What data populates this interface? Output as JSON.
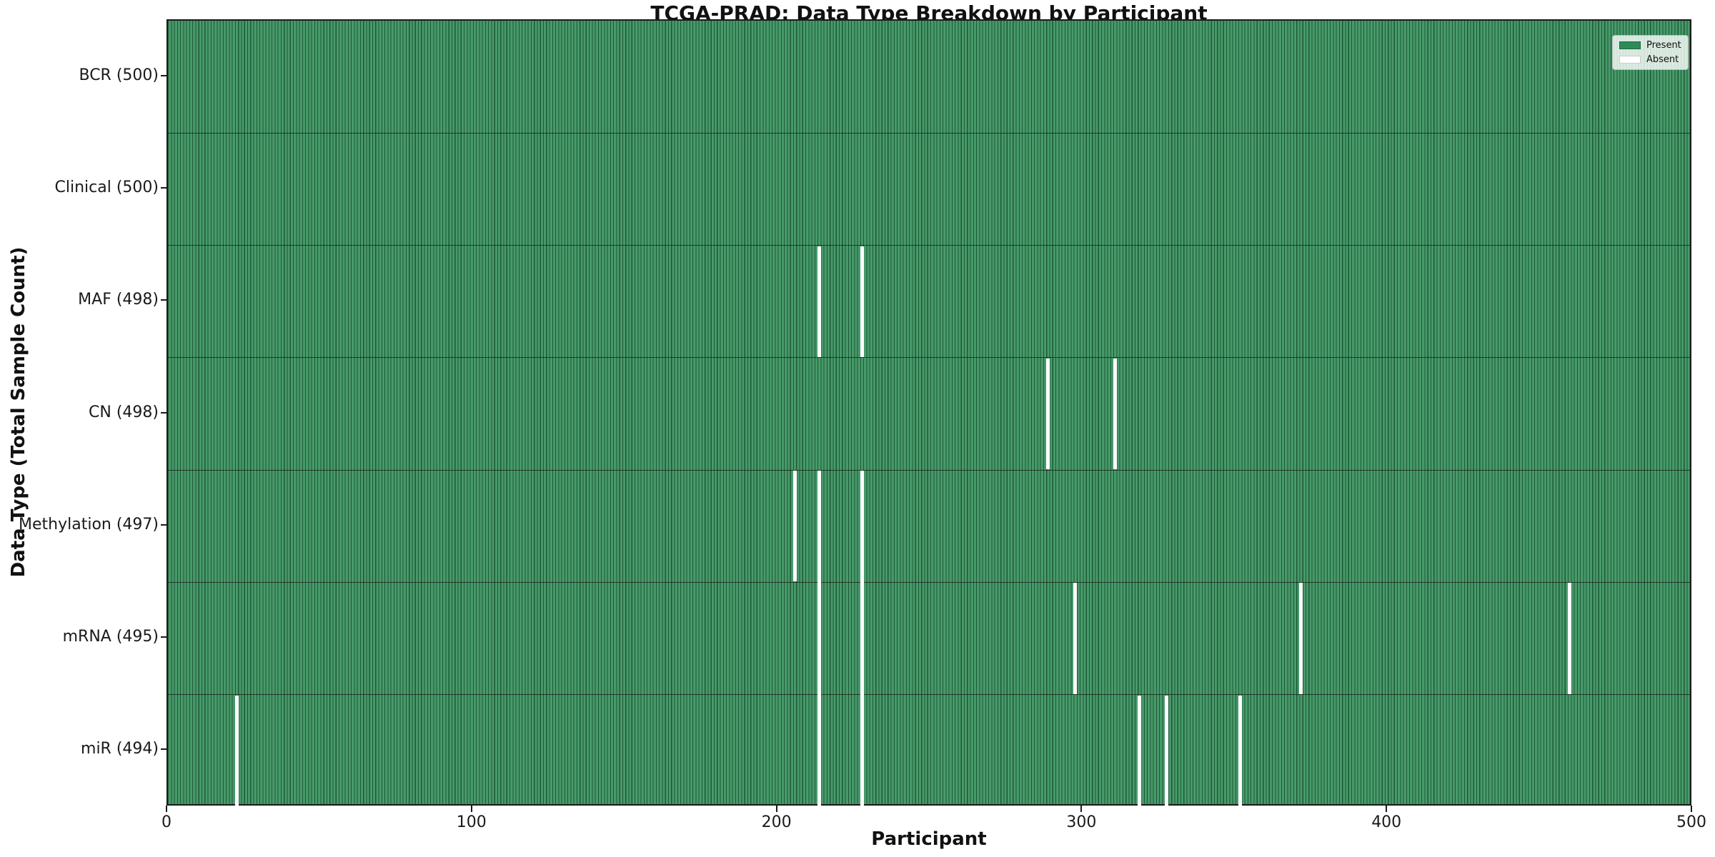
{
  "chart_data": {
    "type": "heatmap",
    "title": "TCGA-PRAD: Data Type Breakdown by Participant",
    "xlabel": "Participant",
    "ylabel": "Data Type (Total Sample Count)",
    "n_participants": 500,
    "x_range": [
      0,
      500
    ],
    "x_ticks": [
      0,
      100,
      200,
      300,
      400,
      500
    ],
    "legend_position": "upper right",
    "grid": false,
    "legend": [
      {
        "label": "Present",
        "color": "#2e8b57"
      },
      {
        "label": "Absent",
        "color": "#ffffff"
      }
    ],
    "rows": [
      {
        "label": "BCR (500)",
        "data_type": "BCR",
        "total": 500,
        "absent_participants": []
      },
      {
        "label": "Clinical (500)",
        "data_type": "Clinical",
        "total": 500,
        "absent_participants": []
      },
      {
        "label": "MAF (498)",
        "data_type": "MAF",
        "total": 498,
        "absent_participants": [
          213,
          227
        ]
      },
      {
        "label": "CN (498)",
        "data_type": "CN",
        "total": 498,
        "absent_participants": [
          288,
          310
        ]
      },
      {
        "label": "Methylation (497)",
        "data_type": "Methylation",
        "total": 497,
        "absent_participants": [
          205,
          213,
          227
        ]
      },
      {
        "label": "mRNA (495)",
        "data_type": "mRNA",
        "total": 495,
        "absent_participants": [
          213,
          227,
          297,
          371,
          459
        ]
      },
      {
        "label": "miR (494)",
        "data_type": "miR",
        "total": 494,
        "absent_participants": [
          22,
          213,
          227,
          318,
          327,
          351
        ]
      }
    ],
    "colors": {
      "present": "#2e8b57",
      "present_fill": "#489a6a",
      "present_stripe": "#1c5837",
      "absent": "#ffffff",
      "axis": "#1a1a1a",
      "row_divider": "#1a1a1a",
      "legend_bg": "rgba(255,255,255,0.8)",
      "legend_border": "#bbbbbb",
      "absent_swatch_border": "#cccccc"
    }
  }
}
